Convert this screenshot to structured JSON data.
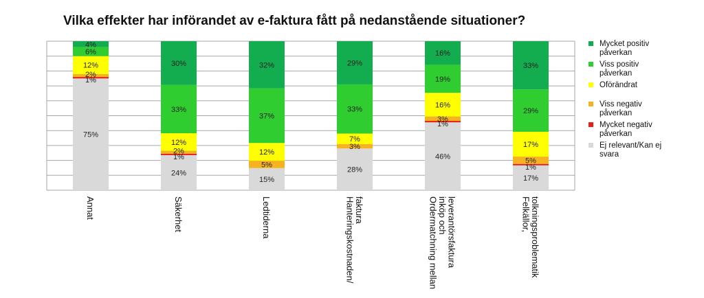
{
  "chart_data": {
    "type": "bar",
    "stacked": true,
    "percent": true,
    "title": "Vilka effekter har införandet av e-faktura fått på nedanstående situationer?",
    "ylim": [
      0,
      100
    ],
    "grid": true,
    "legend_position": "right",
    "categories": [
      [
        "Annat"
      ],
      [
        "Säkerhet"
      ],
      [
        "Ledtiderna"
      ],
      [
        "Hanteringskostnaden/",
        "faktura"
      ],
      [
        "Ordermatchning mellan",
        "inköp och",
        "leverantörsfaktura"
      ],
      [
        "Felkällor,",
        "tolkningsproblematik"
      ]
    ],
    "series": [
      {
        "name": "Ej relevant/Kan ej svara",
        "color": "#d9d9d9",
        "values": [
          75,
          24,
          15,
          28,
          46,
          17
        ],
        "labels": [
          "75%",
          "24%",
          "15%",
          "28%",
          "46%",
          "17%"
        ]
      },
      {
        "name": "Mycket negativ påverkan",
        "color": "#e3221b",
        "values": [
          1,
          1,
          0,
          0,
          1,
          1
        ],
        "labels": [
          "1%",
          "1%",
          "",
          "",
          "1%",
          "1%"
        ]
      },
      {
        "name": "Viss negativ påverkan",
        "color": "#f5b320",
        "values": [
          2,
          2,
          5,
          3,
          3,
          5
        ],
        "labels": [
          "2%",
          "2%",
          "5%",
          "3%",
          "3%",
          "5%"
        ]
      },
      {
        "name": "Oförändrat",
        "color": "#ffff00",
        "values": [
          12,
          12,
          12,
          7,
          16,
          17
        ],
        "labels": [
          "12%",
          "12%",
          "12%",
          "7%",
          "16%",
          "17%"
        ]
      },
      {
        "name": "Viss positiv påverkan",
        "color": "#2fcd2f",
        "values": [
          6,
          33,
          37,
          33,
          19,
          29
        ],
        "labels": [
          "6%",
          "33%",
          "37%",
          "33%",
          "19%",
          "29%"
        ]
      },
      {
        "name": "Mycket positiv påverkan",
        "color": "#13ac4f",
        "values": [
          4,
          30,
          32,
          29,
          16,
          33
        ],
        "labels": [
          "4%",
          "30%",
          "32%",
          "29%",
          "16%",
          "33%"
        ]
      }
    ],
    "legend": [
      {
        "lines": [
          "Mycket positiv",
          "påverkan"
        ],
        "color": "#13ac4f"
      },
      {
        "lines": [
          "Viss positiv",
          "påverkan"
        ],
        "color": "#2fcd2f"
      },
      {
        "lines": [
          "Oförändrat"
        ],
        "color": "#ffff00"
      },
      {
        "lines": [
          "Viss negativ",
          "påverkan"
        ],
        "color": "#f5b320"
      },
      {
        "lines": [
          "Mycket negativ",
          "påverkan"
        ],
        "color": "#e3221b"
      },
      {
        "lines": [
          "Ej relevant/Kan ej",
          "svara"
        ],
        "color": "#d9d9d9"
      }
    ]
  }
}
